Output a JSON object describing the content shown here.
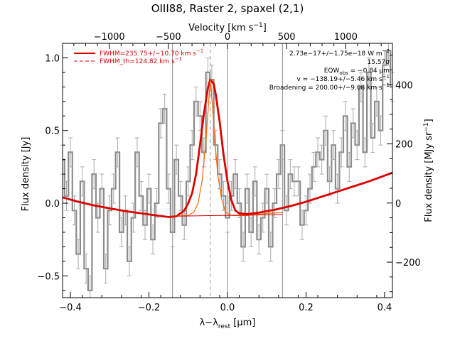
{
  "chart_data": {
    "type": "line",
    "title": "OIII88, Raster 2, spaxel (2,1)",
    "xlabel": {
      "main": "λ−λ",
      "sub": "rest",
      "tail": " [μm]"
    },
    "ylabel": "Flux density [Jy]",
    "top_xlabel": {
      "main": "Velocity [km s",
      "sup": "−1",
      "tail": "]"
    },
    "right_ylabel": {
      "main": "Flux density [MJy sr",
      "sup": "−1",
      "tail": "]"
    },
    "xlim": [
      -0.42,
      0.42
    ],
    "ylim": [
      -0.65,
      1.1
    ],
    "x_ticks": [
      "−0.4",
      "−0.2",
      "0.0",
      "0.2",
      "0.4"
    ],
    "x_tick_values": [
      -0.4,
      -0.2,
      0.0,
      0.2,
      0.4
    ],
    "y_ticks": [
      "−0.5",
      "0.0",
      "0.5",
      "1.0"
    ],
    "y_tick_values": [
      -0.5,
      0.0,
      0.5,
      1.0
    ],
    "top_ticks": [
      "−1000",
      "−500",
      "0",
      "500",
      "1000"
    ],
    "top_tick_values": [
      -1000,
      -500,
      0,
      500,
      1000
    ],
    "right_ticks": [
      "−200",
      "0",
      "200",
      "400"
    ],
    "right_tick_values": [
      -200,
      0,
      200,
      400
    ],
    "right_ylim": [
      -320,
      540
    ],
    "grid": false,
    "vertical_lines": [
      -0.14,
      0.0,
      0.14
    ],
    "dashed_line_x": -0.044,
    "legend": {
      "position": "top-left",
      "entries": [
        {
          "text": "FWHM=235.75+/−10.70 km s",
          "sup": "−1",
          "style": "solid",
          "color": "#dd0000"
        },
        {
          "text": "FWHM_th=124.82 km s",
          "sup": "−1",
          "style": "dashed",
          "color": "#dd0000"
        }
      ]
    },
    "annotations": [
      {
        "text": "2.73e−17+/−1.75e−18 W m",
        "sup": "−2",
        "tail": ""
      },
      {
        "text": "15.57σ",
        "sup": "",
        "tail": ""
      },
      {
        "text": "EQW",
        "sub": "obs",
        "tail": " = −0.84 μm"
      },
      {
        "text": "v = −138.19+/−5.46 km s",
        "sup": "−1",
        "tail": ""
      },
      {
        "text": "Broadening = 200.00+/−9.08 km s",
        "sup": "−1",
        "tail": ""
      }
    ],
    "series": [
      {
        "name": "FWHM=235.75+/−10.70 km s−1",
        "kind": "fit",
        "color": "#dd0000",
        "x": [
          -0.42,
          -0.38,
          -0.34,
          -0.3,
          -0.26,
          -0.22,
          -0.18,
          -0.15,
          -0.13,
          -0.11,
          -0.1,
          -0.09,
          -0.08,
          -0.07,
          -0.06,
          -0.05,
          -0.044,
          -0.035,
          -0.03,
          -0.02,
          -0.01,
          0.0,
          0.01,
          0.02,
          0.03,
          0.05,
          0.08,
          0.12,
          0.16,
          0.2,
          0.24,
          0.28,
          0.32,
          0.36,
          0.4,
          0.42
        ],
        "y": [
          0.04,
          0.01,
          -0.015,
          -0.035,
          -0.055,
          -0.07,
          -0.085,
          -0.095,
          -0.09,
          -0.05,
          0.0,
          0.07,
          0.2,
          0.4,
          0.62,
          0.79,
          0.85,
          0.82,
          0.75,
          0.56,
          0.33,
          0.15,
          0.02,
          -0.05,
          -0.07,
          -0.075,
          -0.065,
          -0.045,
          -0.02,
          0.01,
          0.045,
          0.08,
          0.115,
          0.15,
          0.19,
          0.21
        ]
      },
      {
        "name": "FWHM_th=124.82 km s−1",
        "kind": "fit",
        "color": "#ff6600",
        "x": [
          -0.14,
          -0.1,
          -0.085,
          -0.075,
          -0.065,
          -0.055,
          -0.05,
          -0.044,
          -0.038,
          -0.032,
          -0.025,
          -0.015,
          -0.005,
          0.005,
          0.015,
          0.05,
          0.1,
          0.14
        ],
        "y": [
          -0.09,
          -0.085,
          -0.06,
          0.0,
          0.15,
          0.42,
          0.62,
          0.85,
          0.66,
          0.43,
          0.2,
          0.03,
          -0.06,
          -0.08,
          -0.085,
          -0.085,
          -0.07,
          -0.065
        ]
      },
      {
        "name": "",
        "kind": "baseline",
        "color": "#dd0000",
        "x": [
          -0.14,
          -0.1,
          -0.06,
          -0.03,
          0.0,
          0.03,
          0.06,
          0.1,
          0.14
        ],
        "y": [
          -0.09,
          -0.088,
          -0.086,
          -0.085,
          -0.084,
          -0.083,
          -0.082,
          -0.08,
          -0.078
        ]
      },
      {
        "name": "",
        "kind": "data",
        "color": "#8c8c8c",
        "x": [
          -0.42,
          -0.41,
          -0.4,
          -0.39,
          -0.38,
          -0.37,
          -0.36,
          -0.35,
          -0.34,
          -0.33,
          -0.32,
          -0.31,
          -0.3,
          -0.29,
          -0.28,
          -0.27,
          -0.26,
          -0.25,
          -0.24,
          -0.23,
          -0.22,
          -0.21,
          -0.2,
          -0.19,
          -0.18,
          -0.17,
          -0.16,
          -0.15,
          -0.14,
          -0.13,
          -0.12,
          -0.11,
          -0.1,
          -0.09,
          -0.08,
          -0.07,
          -0.06,
          -0.05,
          -0.04,
          -0.03,
          -0.02,
          -0.01,
          0.0,
          0.01,
          0.02,
          0.03,
          0.04,
          0.05,
          0.06,
          0.07,
          0.08,
          0.09,
          0.1,
          0.11,
          0.12,
          0.13,
          0.14,
          0.15,
          0.16,
          0.17,
          0.18,
          0.19,
          0.2,
          0.21,
          0.22,
          0.23,
          0.24,
          0.25,
          0.26,
          0.27,
          0.28,
          0.29,
          0.3,
          0.31,
          0.32,
          0.33,
          0.34,
          0.35,
          0.36,
          0.37,
          0.38,
          0.39,
          0.4,
          0.41,
          0.42
        ],
        "y": [
          0.3,
          0.05,
          0.35,
          -0.05,
          -0.35,
          0.15,
          -0.45,
          -0.6,
          0.2,
          -0.1,
          0.1,
          -0.45,
          -0.05,
          0.1,
          0.35,
          -0.2,
          -0.05,
          -0.4,
          -0.1,
          0.35,
          0.05,
          -0.15,
          0.1,
          -0.25,
          0.0,
          0.55,
          0.65,
          0.1,
          -0.2,
          0.3,
          0.05,
          -0.15,
          0.15,
          0.4,
          0.7,
          0.6,
          0.35,
          0.9,
          0.85,
          0.4,
          0.2,
          0.05,
          -0.1,
          0.05,
          0.2,
          0.0,
          -0.3,
          0.1,
          -0.2,
          0.15,
          -0.25,
          -0.1,
          0.1,
          -0.3,
          0.0,
          0.2,
          0.4,
          -0.05,
          0.2,
          0.15,
          0.15,
          -0.15,
          -0.05,
          0.1,
          0.25,
          0.35,
          0.3,
          0.5,
          0.15,
          0.4,
          0.1,
          0.35,
          0.6,
          0.25,
          0.55,
          0.4,
          0.8,
          0.35,
          0.9,
          0.45,
          0.7,
          0.5,
          0.95,
          1.05,
          0.8
        ],
        "err": 0.1
      }
    ]
  }
}
